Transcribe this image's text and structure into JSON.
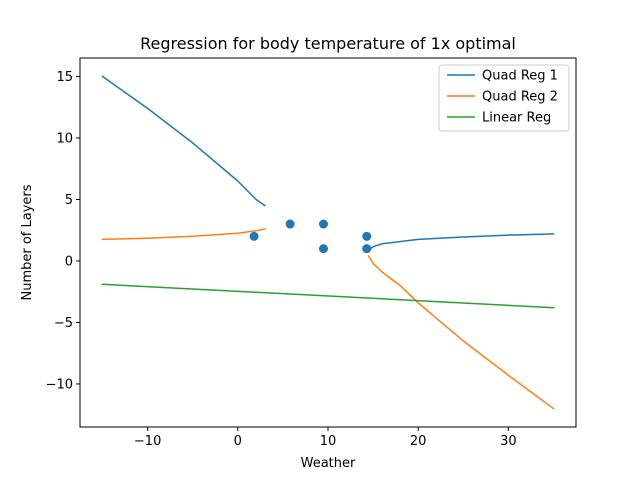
{
  "chart_data": {
    "type": "line",
    "title": "Regression for body temperature of 1x optimal",
    "xlabel": "Weather",
    "ylabel": "Number of Layers",
    "xlim": [
      -17.5,
      37.5
    ],
    "ylim": [
      -13.5,
      16.5
    ],
    "x_ticks": [
      -10,
      0,
      10,
      20,
      30
    ],
    "y_ticks": [
      -10,
      -5,
      0,
      5,
      10,
      15
    ],
    "x_tick_labels": [
      "−10",
      "0",
      "10",
      "20",
      "30"
    ],
    "y_tick_labels": [
      "−10",
      "−5",
      "0",
      "5",
      "10",
      "15"
    ],
    "grid": false,
    "legend_position": "upper right",
    "scatter": {
      "color": "#1f77b4",
      "points": [
        {
          "x": 1.8,
          "y": 2
        },
        {
          "x": 5.8,
          "y": 3
        },
        {
          "x": 9.5,
          "y": 3
        },
        {
          "x": 9.5,
          "y": 1
        },
        {
          "x": 14.3,
          "y": 2
        },
        {
          "x": 14.3,
          "y": 1
        }
      ]
    },
    "series": [
      {
        "name": "Quad Reg 1",
        "color": "#1f77b4",
        "segments": [
          [
            [
              -15,
              15.0
            ],
            [
              -10,
              12.4
            ],
            [
              -5,
              9.6
            ],
            [
              0,
              6.5
            ],
            [
              2,
              5.0
            ],
            [
              3,
              4.5
            ]
          ],
          [
            [
              14.5,
              0.9
            ],
            [
              15,
              1.15
            ],
            [
              16,
              1.4
            ],
            [
              20,
              1.75
            ],
            [
              25,
              1.95
            ],
            [
              30,
              2.1
            ],
            [
              35,
              2.2
            ]
          ]
        ]
      },
      {
        "name": "Quad Reg 2",
        "color": "#ff7f0e",
        "segments": [
          [
            [
              -15,
              1.75
            ],
            [
              -10,
              1.85
            ],
            [
              -5,
              2.0
            ],
            [
              0,
              2.25
            ],
            [
              2,
              2.45
            ],
            [
              3,
              2.6
            ]
          ],
          [
            [
              14.5,
              0.4
            ],
            [
              15,
              -0.2
            ],
            [
              16,
              -0.9
            ],
            [
              18,
              -2.0
            ],
            [
              20,
              -3.4
            ],
            [
              25,
              -6.5
            ],
            [
              30,
              -9.3
            ],
            [
              35,
              -12.0
            ]
          ]
        ]
      },
      {
        "name": "Linear Reg",
        "color": "#2ca02c",
        "segments": [
          [
            [
              -15,
              -1.9
            ],
            [
              35,
              -3.8
            ]
          ]
        ]
      }
    ]
  }
}
